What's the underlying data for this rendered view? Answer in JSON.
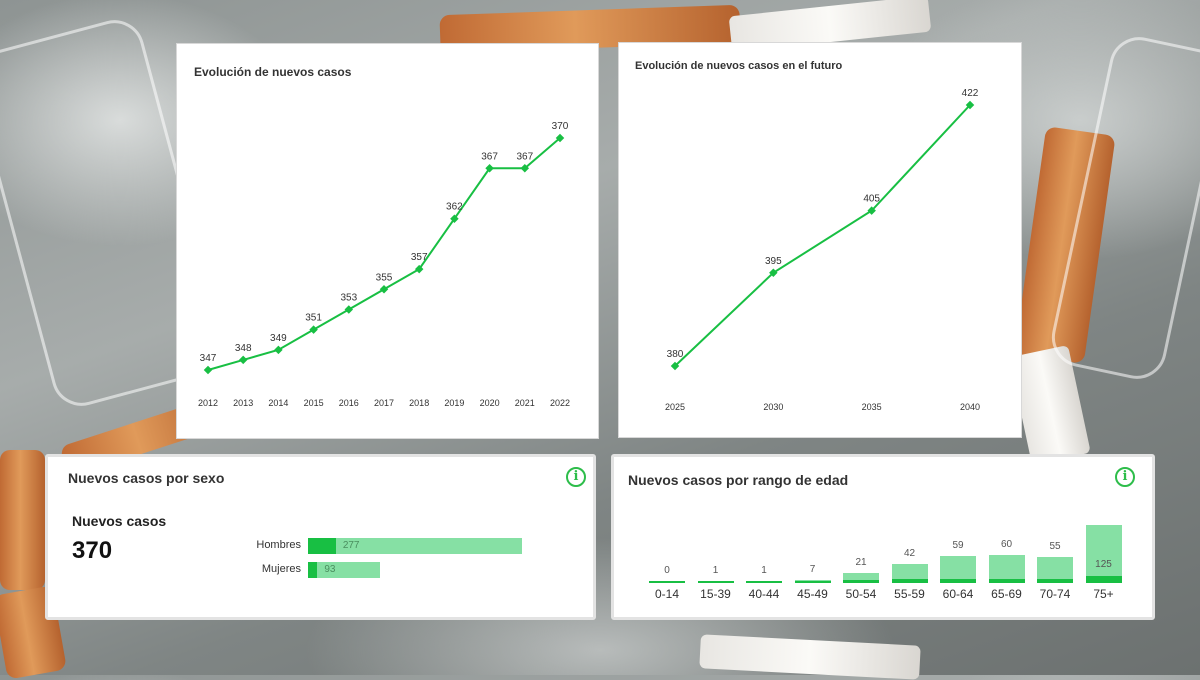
{
  "colors": {
    "line": "#18bf43",
    "bar_dark": "#18bf43",
    "bar_light": "#86e0a4",
    "info": "#2dbd4a"
  },
  "chart_data": [
    {
      "type": "line",
      "title": "Evolución de nuevos casos",
      "x": [
        "2012",
        "2013",
        "2014",
        "2015",
        "2016",
        "2017",
        "2018",
        "2019",
        "2020",
        "2021",
        "2022"
      ],
      "series": [
        {
          "values": [
            347,
            348,
            349,
            351,
            353,
            355,
            357,
            362,
            367,
            367,
            370
          ]
        }
      ],
      "data_labels": true,
      "grid": false,
      "legend": "none"
    },
    {
      "type": "line",
      "title": "Evolución de nuevos casos en el futuro",
      "x": [
        "2025",
        "2030",
        "2035",
        "2040"
      ],
      "series": [
        {
          "values": [
            380,
            395,
            405,
            422
          ]
        }
      ],
      "data_labels": true,
      "grid": false,
      "legend": "none"
    },
    {
      "type": "bar",
      "orientation": "horizontal",
      "title": "Nuevos casos por sexo",
      "summary_label": "Nuevos casos",
      "summary_value": "370",
      "categories": [
        "Hombres",
        "Mujeres"
      ],
      "values": [
        277,
        93
      ]
    },
    {
      "type": "bar",
      "title": "Nuevos casos por rango de edad",
      "categories": [
        "0-14",
        "15-39",
        "40-44",
        "45-49",
        "50-54",
        "55-59",
        "60-64",
        "65-69",
        "70-74",
        "75+"
      ],
      "values": [
        0,
        1,
        1,
        7,
        21,
        42,
        59,
        60,
        55,
        125
      ]
    }
  ]
}
